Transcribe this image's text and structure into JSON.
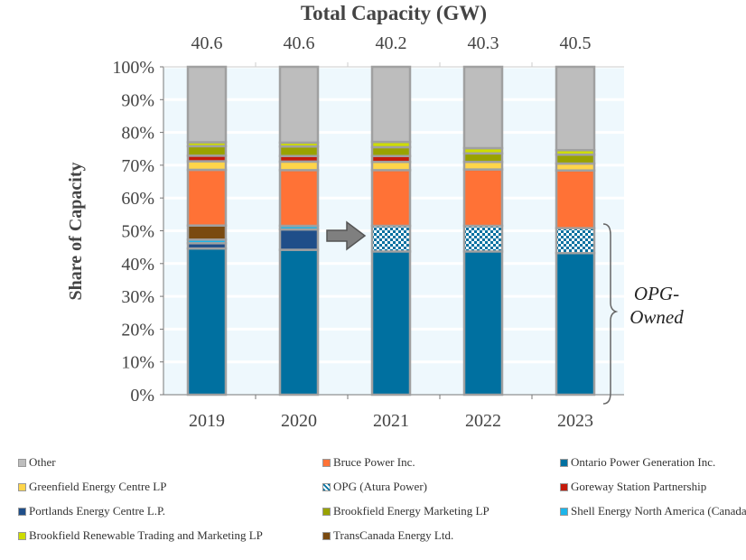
{
  "chart_data": {
    "type": "bar",
    "stacked": true,
    "top_axis_title": "Total Capacity (GW)",
    "top_axis_values": [
      "40.6",
      "40.6",
      "40.2",
      "40.3",
      "40.5"
    ],
    "ylabel": "Share of Capacity",
    "xlabel": "",
    "categories": [
      "2019",
      "2020",
      "2021",
      "2022",
      "2023"
    ],
    "ylim": [
      0,
      100
    ],
    "yticks": [
      "0%",
      "10%",
      "20%",
      "30%",
      "40%",
      "50%",
      "60%",
      "70%",
      "80%",
      "90%",
      "100%"
    ],
    "grid": true,
    "legend_position": "bottom",
    "series": [
      {
        "name": "Ontario Power Generation Inc.",
        "color": "#0070a0",
        "values": [
          44.6,
          44.2,
          43.7,
          43.7,
          43.2
        ]
      },
      {
        "name": "Portlands Energy Centre L.P.",
        "color": "#1f4e89",
        "values": [
          1.6,
          6.2,
          0,
          0,
          0
        ]
      },
      {
        "name": "Shell Energy North America (Canada) Inc.",
        "color": "#1cb5ea",
        "values": [
          1.1,
          1.1,
          0,
          0,
          0
        ]
      },
      {
        "name": "TransCanada Energy Ltd.",
        "color": "#7a4a10",
        "values": [
          4.3,
          0,
          0,
          0,
          0
        ]
      },
      {
        "name": "OPG (Atura Power)",
        "color": "#0070a0",
        "pattern": true,
        "values": [
          0,
          0,
          7.8,
          7.8,
          7.6
        ]
      },
      {
        "name": "Bruce Power Inc.",
        "color": "#ff7236",
        "values": [
          17.0,
          17.0,
          17.0,
          17.2,
          17.6
        ]
      },
      {
        "name": "Greenfield Energy Centre LP",
        "color": "#ffd54a",
        "values": [
          2.6,
          2.6,
          2.5,
          2.3,
          2.1
        ]
      },
      {
        "name": "Goreway Station Partnership",
        "color": "#c41a0a",
        "values": [
          1.7,
          1.7,
          1.8,
          0,
          0
        ]
      },
      {
        "name": "Brookfield Energy Marketing LP",
        "color": "#99a200",
        "values": [
          2.9,
          2.9,
          2.7,
          2.6,
          2.7
        ]
      },
      {
        "name": "Brookfield Renewable Trading and Marketing LP",
        "color": "#cddc00",
        "values": [
          1.2,
          1.2,
          1.6,
          1.6,
          1.4
        ]
      },
      {
        "name": "Other",
        "color": "#bdbdbd",
        "values": [
          23.0,
          23.1,
          22.9,
          24.8,
          25.4
        ]
      }
    ],
    "annotations": {
      "brace_label": "OPG-Owned",
      "arrow": "from 2020 to 2021"
    }
  },
  "legend_order": [
    "Other",
    "Greenfield Energy Centre LP",
    "Portlands Energy Centre L.P.",
    "Brookfield Renewable Trading and Marketing LP",
    "Bruce Power Inc.",
    "OPG (Atura Power)",
    "Brookfield Energy Marketing LP",
    "TransCanada Energy Ltd.",
    "Ontario Power Generation Inc.",
    "Goreway Station Partnership",
    "Shell Energy North America (Canada) Inc."
  ]
}
